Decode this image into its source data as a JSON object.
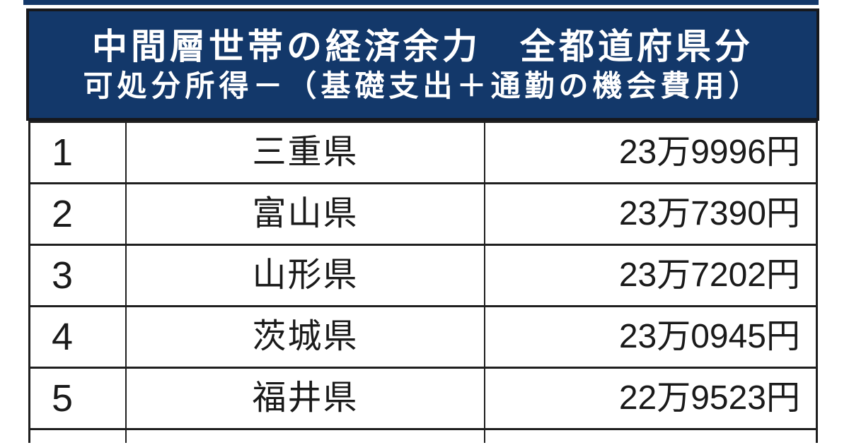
{
  "header": {
    "title": "中間層世帯の経済余力　全都道府県分",
    "subtitle": "可処分所得－（基礎支出＋通勤の機会費用）"
  },
  "chart_data": {
    "type": "table",
    "title": "中間層世帯の経済余力　全都道府県分",
    "subtitle": "可処分所得－（基礎支出＋通勤の機会費用）",
    "rows": [
      {
        "rank": "1",
        "prefecture": "三重県",
        "amount": "23万9996円",
        "amount_yen": 239996
      },
      {
        "rank": "2",
        "prefecture": "富山県",
        "amount": "23万7390円",
        "amount_yen": 237390
      },
      {
        "rank": "3",
        "prefecture": "山形県",
        "amount": "23万7202円",
        "amount_yen": 237202
      },
      {
        "rank": "4",
        "prefecture": "茨城県",
        "amount": "23万0945円",
        "amount_yen": 230945
      },
      {
        "rank": "5",
        "prefecture": "福井県",
        "amount": "22万9523円",
        "amount_yen": 229523
      }
    ]
  },
  "colors": {
    "header_bg": "#13386a",
    "header_text": "#ffffff",
    "border": "#1f1f1f",
    "table_text": "#1a1a1a",
    "background": "#ffffff"
  }
}
